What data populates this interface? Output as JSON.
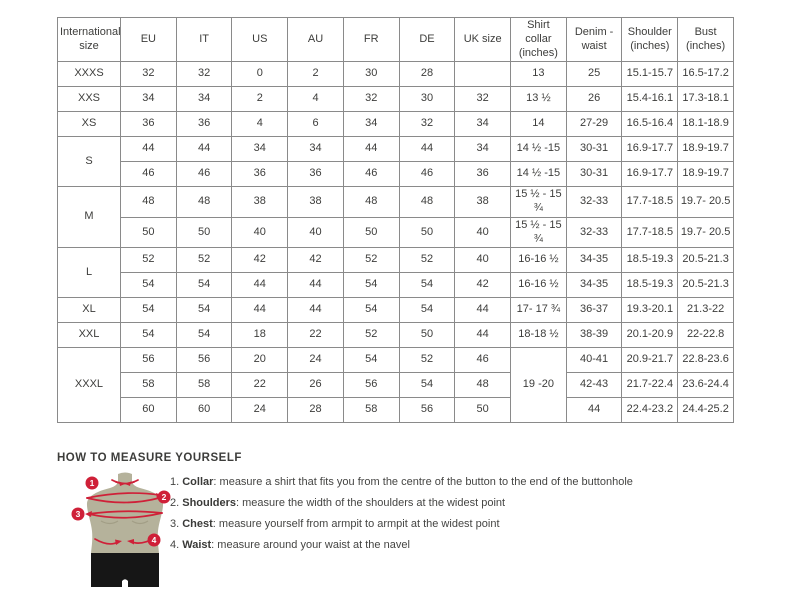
{
  "colors": {
    "accent_red": "#cf2038",
    "table_border": "#8a8a8a",
    "text": "#3d3d3b",
    "mannequin_body": "#b5b29b",
    "mannequin_shorts": "#161616"
  },
  "size_table": {
    "columns": [
      "International size",
      "EU",
      "IT",
      "US",
      "AU",
      "FR",
      "DE",
      "UK size",
      "Shirt collar (inches)",
      "Denim - waist",
      "Shoulder (inches)",
      "Bust (inches)"
    ],
    "rows": [
      [
        "XXXS",
        "32",
        "32",
        "0",
        "2",
        "30",
        "28",
        "",
        "13",
        "25",
        "15.1-15.7",
        "16.5-17.2"
      ],
      [
        "XXS",
        "34",
        "34",
        "2",
        "4",
        "32",
        "30",
        "32",
        "13 ½",
        "26",
        "15.4-16.1",
        "17.3-18.1"
      ],
      [
        "XS",
        "36",
        "36",
        "4",
        "6",
        "34",
        "32",
        "34",
        "14",
        "27-29",
        "16.5-16.4",
        "18.1-18.9"
      ],
      [
        {
          "t": "S",
          "rs": 2
        },
        "44",
        "44",
        "34",
        "34",
        "44",
        "44",
        "34",
        "14 ½ -15",
        "30-31",
        "16.9-17.7",
        "18.9-19.7"
      ],
      [
        "46",
        "46",
        "36",
        "36",
        "46",
        "46",
        "36",
        "14 ½ -15",
        "30-31",
        "16.9-17.7",
        "18.9-19.7"
      ],
      [
        {
          "t": "M",
          "rs": 2
        },
        "48",
        "48",
        "38",
        "38",
        "48",
        "48",
        "38",
        "15 ½ - 15 ¾",
        "32-33",
        "17.7-18.5",
        "19.7- 20.5"
      ],
      [
        "50",
        "50",
        "40",
        "40",
        "50",
        "50",
        "40",
        "15 ½ - 15 ¾",
        "32-33",
        "17.7-18.5",
        "19.7- 20.5"
      ],
      [
        {
          "t": "L",
          "rs": 2
        },
        "52",
        "52",
        "42",
        "42",
        "52",
        "52",
        "40",
        "16-16 ½",
        "34-35",
        "18.5-19.3",
        "20.5-21.3"
      ],
      [
        "54",
        "54",
        "44",
        "44",
        "54",
        "54",
        "42",
        "16-16 ½",
        "34-35",
        "18.5-19.3",
        "20.5-21.3"
      ],
      [
        "XL",
        "54",
        "54",
        "44",
        "44",
        "54",
        "54",
        "44",
        "17- 17 ¾",
        "36-37",
        "19.3-20.1",
        "21.3-22"
      ],
      [
        "XXL",
        "54",
        "54",
        "18",
        "22",
        "52",
        "50",
        "44",
        "18-18 ½",
        "38-39",
        "20.1-20.9",
        "22-22.8"
      ],
      [
        {
          "t": "XXXL",
          "rs": 3
        },
        "56",
        "56",
        "20",
        "24",
        "54",
        "52",
        "46",
        {
          "t": "19 -20",
          "rs": 3
        },
        "40-41",
        "20.9-21.7",
        "22.8-23.6"
      ],
      [
        "58",
        "58",
        "22",
        "26",
        "56",
        "54",
        "48",
        "42-43",
        "21.7-22.4",
        "23.6-24.4"
      ],
      [
        "60",
        "60",
        "24",
        "28",
        "58",
        "56",
        "50",
        "44",
        "22.4-23.2",
        "24.4-25.2"
      ]
    ]
  },
  "measure": {
    "heading": "HOW TO MEASURE YOURSELF",
    "steps": [
      {
        "badge": "1",
        "label": "1.",
        "term": "Collar",
        "text": ": measure a shirt that fits you from the centre of the button to the end of the buttonhole"
      },
      {
        "badge": "2",
        "label": "2.",
        "term": "Shoulders",
        "text": ": measure the width of the shoulders at the widest point"
      },
      {
        "badge": "3",
        "label": "3.",
        "term": "Chest",
        "text": ": measure yourself from armpit to armpit at the widest point"
      },
      {
        "badge": "4",
        "label": "4.",
        "term": "Waist",
        "text": ": measure around your waist at the navel"
      }
    ]
  }
}
